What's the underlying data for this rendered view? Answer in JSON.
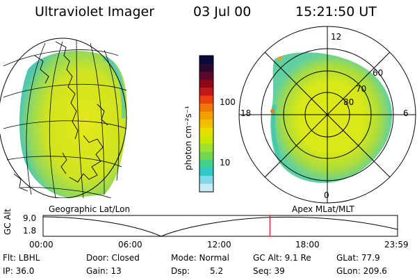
{
  "header": {
    "instrument": "Ultraviolet Imager",
    "date": "03 Jul 00",
    "time": "15:21:50 UT"
  },
  "colorbar": {
    "unit_label": "photon cm⁻²s⁻¹",
    "tick_labels": [
      "100",
      "10"
    ],
    "colors": [
      "#0a0a3a",
      "#2a0830",
      "#5a0a28",
      "#8a0818",
      "#c01818",
      "#e84010",
      "#f07808",
      "#f4a000",
      "#f0c000",
      "#e8e000",
      "#c8e800",
      "#a0e030",
      "#70d850",
      "#40d090",
      "#30c8c8",
      "#80d8e8",
      "#c8ecf4"
    ]
  },
  "geo_view": {
    "label": "Geographic Lat/Lon"
  },
  "polar_view": {
    "label": "Apex MLat/MLT",
    "hour_labels": {
      "top": "12",
      "left": "18",
      "right": "6",
      "bottom": "0"
    },
    "lat_labels": [
      "80",
      "70",
      "60"
    ]
  },
  "altitude_plot": {
    "ylabel": "GC Alt",
    "y_ticks": [
      "9.0",
      "1.8"
    ],
    "x_ticks": [
      "00:00",
      "06:00",
      "12:00",
      "18:00",
      "23:59"
    ],
    "current_time_fraction": 0.64
  },
  "footer": {
    "flt": "Flt: LBHL",
    "ip": "IP: 36.0",
    "door": "Door: Closed",
    "gain": "Gain: 13",
    "mode": "Mode: Normal",
    "dsp_label": "Dsp:",
    "dsp_value": "5.2",
    "gc_alt": "GC Alt: 9.1 Re",
    "seq": "Seq: 39",
    "glat": "GLat:  77.9",
    "glon": "GLon: 209.6"
  }
}
